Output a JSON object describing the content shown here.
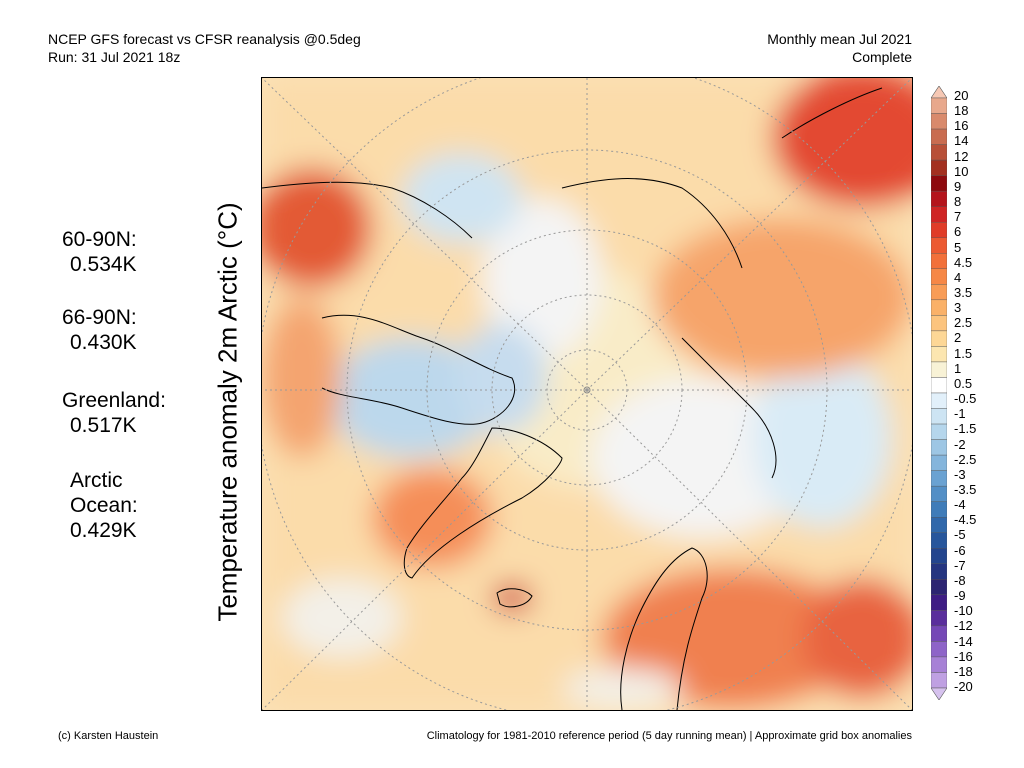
{
  "header": {
    "line1_left": "NCEP GFS forecast vs CFSR reanalysis @0.5deg",
    "line2_left": "Run: 31 Jul 2021 18z",
    "line1_right": "Monthly mean Jul 2021",
    "line2_right": "Complete"
  },
  "ylabel": "Temperature anomaly 2m Arctic (°C)",
  "stats": [
    {
      "label": "60-90N:",
      "value": "0.534K"
    },
    {
      "label": "66-90N:",
      "value": "0.430K"
    },
    {
      "label": "Greenland:",
      "value": "0.517K"
    },
    {
      "label": "Arctic",
      "label2": "Ocean:",
      "value": "0.429K"
    }
  ],
  "colorbar": {
    "labels": [
      "20",
      "18",
      "16",
      "14",
      "12",
      "10",
      "9",
      "8",
      "7",
      "6",
      "5",
      "4.5",
      "4",
      "3.5",
      "3",
      "2.5",
      "2",
      "1.5",
      "1",
      "0.5",
      "-0.5",
      "-1",
      "-1.5",
      "-2",
      "-2.5",
      "-3",
      "-3.5",
      "-4",
      "-4.5",
      "-5",
      "-6",
      "-7",
      "-8",
      "-9",
      "-10",
      "-12",
      "-14",
      "-16",
      "-18",
      "-20"
    ],
    "colors": [
      "#f6c8b4",
      "#e8a88c",
      "#d98a6c",
      "#c96c50",
      "#b85038",
      "#a33020",
      "#8e0a0e",
      "#b4141c",
      "#cf2424",
      "#e03c28",
      "#ec5a32",
      "#f2703a",
      "#f68746",
      "#f89c56",
      "#fab168",
      "#fcc47e",
      "#fdd796",
      "#fce6b0",
      "#f8f2d6",
      "#ffffff",
      "#e2f0fa",
      "#cde4f3",
      "#b5d6ec",
      "#9dc6e4",
      "#84b5dc",
      "#6aa2d2",
      "#538fc6",
      "#3f7cb9",
      "#3068ab",
      "#27569c",
      "#23458e",
      "#253580",
      "#2c2472",
      "#3e1c84",
      "#5a2e9c",
      "#7548b6",
      "#8e64c8",
      "#a781d6",
      "#bfa0e2",
      "#d6c2ee"
    ]
  },
  "footer": {
    "left": "(c) Karsten Haustein",
    "right": "Climatology for 1981-2010 reference period (5 day running mean) | Approximate grid box anomalies"
  }
}
